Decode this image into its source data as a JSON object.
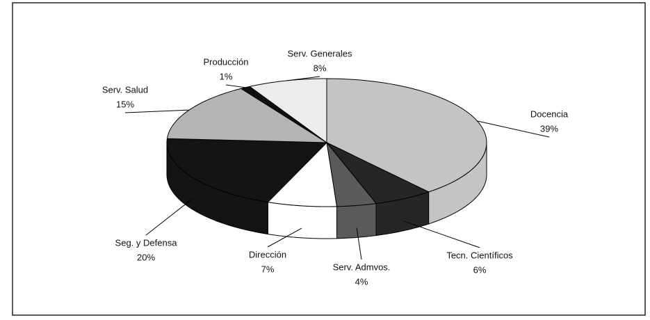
{
  "chart_data": {
    "type": "pie",
    "categories": [
      "Docencia",
      "Tecn. Científicos",
      "Serv. Admvos.",
      "Dirección",
      "Seg. y Defensa",
      "Serv. Salud",
      "Producción",
      "Serv. Generales"
    ],
    "values": [
      39,
      6,
      4,
      7,
      20,
      15,
      1,
      8
    ],
    "value_labels": [
      "39%",
      "6%",
      "4%",
      "7%",
      "20%",
      "15%",
      "1%",
      "8%"
    ],
    "colors": [
      "#c4c4c4",
      "#262626",
      "#5a5a5a",
      "#ffffff",
      "#141414",
      "#b4b4b4",
      "#101010",
      "#ececec"
    ]
  }
}
